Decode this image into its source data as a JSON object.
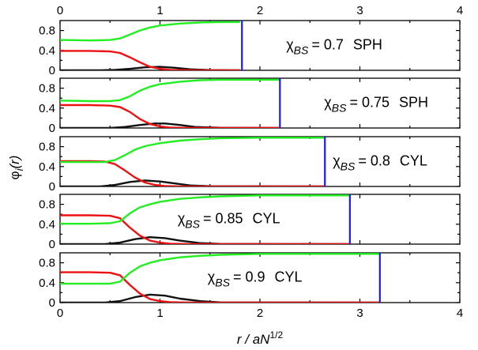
{
  "chart_data": {
    "type": "line",
    "ylabel": "φi(r)",
    "xlabel": "r / aN1/2",
    "xlim": [
      0,
      4
    ],
    "ylim": [
      0,
      1
    ],
    "x_ticks": [
      0,
      1,
      2,
      3,
      4
    ],
    "y_ticks": [
      0,
      0.4,
      0.8
    ],
    "y_minor_ticks": [
      0.2,
      0.6
    ],
    "top_axis_labels": true,
    "grid": false,
    "colors": {
      "green": "#22ee22",
      "red": "#ee1111",
      "black": "#111111",
      "boundary": "#1a1aee"
    },
    "panels": [
      {
        "chi_label": "χBS = 0.7",
        "chi_symbol": "χ",
        "chi_sub": "BS",
        "chi_value": "= 0.7",
        "morphology": "SPH",
        "boundary_r": 1.82,
        "series": [
          {
            "color": "green",
            "x": [
              0,
              0.3,
              0.5,
              0.6,
              0.7,
              0.8,
              0.9,
              1.0,
              1.2,
              1.4,
              1.6,
              1.8
            ],
            "y": [
              0.61,
              0.6,
              0.61,
              0.64,
              0.72,
              0.8,
              0.86,
              0.9,
              0.94,
              0.96,
              0.97,
              0.97
            ]
          },
          {
            "color": "red",
            "x": [
              0,
              0.3,
              0.5,
              0.6,
              0.7,
              0.8,
              0.9,
              1.0,
              1.1,
              1.3,
              1.6,
              1.8
            ],
            "y": [
              0.39,
              0.39,
              0.38,
              0.35,
              0.26,
              0.16,
              0.07,
              0.03,
              0.01,
              0.0,
              0.0,
              0.0
            ]
          },
          {
            "color": "black",
            "x": [
              0,
              0.4,
              0.55,
              0.7,
              0.85,
              1.0,
              1.15,
              1.3,
              1.5,
              1.8
            ],
            "y": [
              0.0,
              0.0,
              0.01,
              0.03,
              0.06,
              0.07,
              0.05,
              0.02,
              0.005,
              0.0
            ]
          }
        ]
      },
      {
        "chi_label": "χBS = 0.75",
        "chi_symbol": "χ",
        "chi_sub": "BS",
        "chi_value": "= 0.75",
        "morphology": "SPH",
        "boundary_r": 2.2,
        "series": [
          {
            "color": "green",
            "x": [
              0,
              0.3,
              0.5,
              0.6,
              0.7,
              0.8,
              0.9,
              1.0,
              1.2,
              1.4,
              1.6,
              1.8,
              2.2
            ],
            "y": [
              0.55,
              0.54,
              0.54,
              0.56,
              0.64,
              0.75,
              0.83,
              0.88,
              0.93,
              0.96,
              0.97,
              0.97,
              0.97
            ]
          },
          {
            "color": "red",
            "x": [
              0,
              0.3,
              0.5,
              0.6,
              0.7,
              0.8,
              0.9,
              1.0,
              1.1,
              1.3,
              1.6,
              2.2
            ],
            "y": [
              0.46,
              0.46,
              0.45,
              0.42,
              0.32,
              0.18,
              0.08,
              0.03,
              0.01,
              0.0,
              0.0,
              0.0
            ]
          },
          {
            "color": "black",
            "x": [
              0,
              0.5,
              0.65,
              0.8,
              0.95,
              1.05,
              1.2,
              1.35,
              1.6,
              2.2
            ],
            "y": [
              0.0,
              0.0,
              0.02,
              0.06,
              0.09,
              0.09,
              0.06,
              0.02,
              0.005,
              0.0
            ]
          }
        ]
      },
      {
        "chi_label": "χBS = 0.8",
        "chi_symbol": "χ",
        "chi_sub": "BS",
        "chi_value": "= 0.8",
        "morphology": "CYL",
        "boundary_r": 2.65,
        "series": [
          {
            "color": "green",
            "x": [
              0,
              0.3,
              0.45,
              0.55,
              0.65,
              0.75,
              0.85,
              1.0,
              1.2,
              1.4,
              1.6,
              2.0,
              2.65
            ],
            "y": [
              0.49,
              0.49,
              0.49,
              0.53,
              0.63,
              0.74,
              0.81,
              0.87,
              0.92,
              0.95,
              0.97,
              0.98,
              0.98
            ]
          },
          {
            "color": "red",
            "x": [
              0,
              0.3,
              0.45,
              0.55,
              0.65,
              0.75,
              0.85,
              0.95,
              1.05,
              1.2,
              1.5,
              2.65
            ],
            "y": [
              0.51,
              0.51,
              0.5,
              0.45,
              0.32,
              0.18,
              0.08,
              0.03,
              0.01,
              0.0,
              0.0,
              0.0
            ]
          },
          {
            "color": "black",
            "x": [
              0,
              0.4,
              0.55,
              0.7,
              0.85,
              1.0,
              1.15,
              1.3,
              1.5,
              2.65
            ],
            "y": [
              0.0,
              0.0,
              0.03,
              0.09,
              0.12,
              0.1,
              0.06,
              0.02,
              0.005,
              0.0
            ]
          }
        ]
      },
      {
        "chi_label": "χBS = 0.85",
        "chi_symbol": "χ",
        "chi_sub": "BS",
        "chi_value": "= 0.85",
        "morphology": "CYL",
        "boundary_r": 2.9,
        "series": [
          {
            "color": "green",
            "x": [
              0,
              0.3,
              0.5,
              0.6,
              0.7,
              0.8,
              0.9,
              1.0,
              1.2,
              1.4,
              1.6,
              2.0,
              2.9
            ],
            "y": [
              0.41,
              0.41,
              0.42,
              0.46,
              0.62,
              0.74,
              0.8,
              0.85,
              0.91,
              0.94,
              0.96,
              0.98,
              0.98
            ]
          },
          {
            "color": "red",
            "x": [
              0,
              0.3,
              0.5,
              0.6,
              0.7,
              0.8,
              0.9,
              1.0,
              1.1,
              1.3,
              1.6,
              2.9
            ],
            "y": [
              0.58,
              0.58,
              0.57,
              0.52,
              0.33,
              0.17,
              0.07,
              0.03,
              0.01,
              0.0,
              0.0,
              0.0
            ]
          },
          {
            "color": "black",
            "x": [
              0,
              0.45,
              0.6,
              0.75,
              0.9,
              1.05,
              1.2,
              1.4,
              1.6,
              2.9
            ],
            "y": [
              0.0,
              0.0,
              0.03,
              0.1,
              0.14,
              0.12,
              0.07,
              0.02,
              0.005,
              0.0
            ]
          }
        ]
      },
      {
        "chi_label": "χBS = 0.9",
        "chi_symbol": "χ",
        "chi_sub": "BS",
        "chi_value": "= 0.9",
        "morphology": "CYL",
        "boundary_r": 3.2,
        "series": [
          {
            "color": "green",
            "x": [
              0,
              0.3,
              0.5,
              0.6,
              0.7,
              0.8,
              0.9,
              1.0,
              1.2,
              1.4,
              1.6,
              2.0,
              3.2
            ],
            "y": [
              0.38,
              0.38,
              0.38,
              0.42,
              0.6,
              0.73,
              0.8,
              0.85,
              0.91,
              0.94,
              0.96,
              0.98,
              0.98
            ]
          },
          {
            "color": "red",
            "x": [
              0,
              0.3,
              0.5,
              0.6,
              0.7,
              0.8,
              0.9,
              1.0,
              1.1,
              1.3,
              1.6,
              3.2
            ],
            "y": [
              0.61,
              0.61,
              0.6,
              0.55,
              0.35,
              0.18,
              0.07,
              0.03,
              0.01,
              0.0,
              0.0,
              0.0
            ]
          },
          {
            "color": "black",
            "x": [
              0,
              0.45,
              0.6,
              0.75,
              0.9,
              1.05,
              1.2,
              1.4,
              1.6,
              3.2
            ],
            "y": [
              0.0,
              0.0,
              0.03,
              0.11,
              0.16,
              0.14,
              0.08,
              0.03,
              0.005,
              0.0
            ]
          }
        ]
      }
    ]
  }
}
